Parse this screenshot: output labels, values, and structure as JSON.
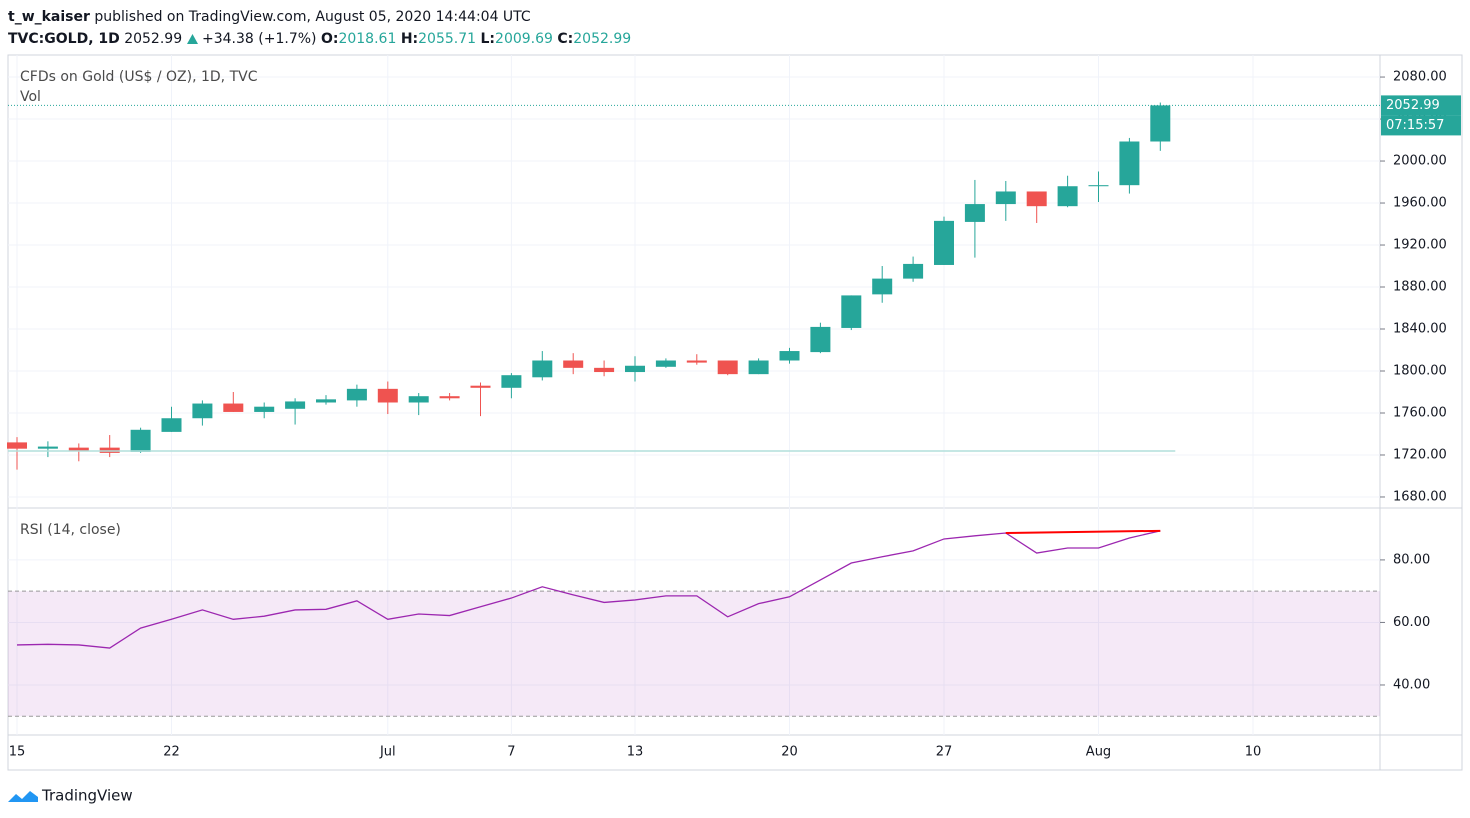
{
  "header": {
    "author": "t_w_kaiser",
    "published": "published on TradingView.com, August 05, 2020 14:44:04 UTC",
    "symbol": "TVC:GOLD, 1D",
    "change": "+34.38 (+1.7%)",
    "ohlc_labels": [
      "O:",
      "H:",
      "L:",
      "C:"
    ]
  },
  "footer": {
    "brand": "TradingView"
  },
  "chart_data": [
    {
      "type": "candlestick",
      "title": "CFDs on Gold (US$ / OZ), 1D, TVC",
      "volume_label": "Vol",
      "countdown": "07:15:57",
      "up_color": "#26a69a",
      "down_color": "#ef5350",
      "grid": true,
      "categories": [
        "15",
        null,
        null,
        null,
        null,
        "22",
        null,
        null,
        null,
        null,
        null,
        null,
        "Jul",
        null,
        null,
        null,
        "7",
        null,
        null,
        null,
        "13",
        null,
        null,
        null,
        null,
        "20",
        null,
        null,
        null,
        null,
        "27",
        null,
        null,
        null,
        null,
        "Aug",
        null,
        null,
        null,
        null,
        "10"
      ],
      "open": [
        1732,
        1726,
        1727,
        1727,
        1723,
        1742,
        1755,
        1769,
        1761,
        1764,
        1770,
        1772,
        1783,
        1770,
        1776,
        1786,
        1784,
        1794,
        1810,
        1803,
        1799,
        1804,
        1810,
        1810,
        1797,
        1810,
        1818,
        1841,
        1873,
        1888,
        1901,
        1942,
        1959,
        1971,
        1957,
        1976,
        1977,
        2018.61,
        null,
        null,
        null
      ],
      "high": [
        1737,
        1733,
        1731,
        1739,
        1746,
        1766,
        1772,
        1780,
        1770,
        1774,
        1777,
        1787,
        1790,
        1779,
        1779,
        1789,
        1798,
        1819,
        1817,
        1810,
        1814,
        1812,
        1816,
        1810,
        1812,
        1822,
        1846,
        1872,
        1900,
        1909,
        1947,
        1982,
        1981,
        1971,
        1986,
        1990,
        2022,
        2055.71,
        null,
        null,
        null
      ],
      "low": [
        1706,
        1718,
        1714,
        1718,
        1722,
        1742,
        1748,
        1761,
        1755,
        1749,
        1768,
        1766,
        1759,
        1758,
        1772,
        1757,
        1774,
        1791,
        1797,
        1795,
        1790,
        1803,
        1806,
        1796,
        1797,
        1807,
        1817,
        1839,
        1865,
        1885,
        1901,
        1908,
        1943,
        1941,
        1956,
        1961,
        1969,
        2009.69,
        null,
        null,
        null
      ],
      "close": [
        1726,
        1728,
        1724,
        1722,
        1744,
        1755,
        1769,
        1761,
        1766,
        1771,
        1773,
        1783,
        1770,
        1776,
        1774,
        1784,
        1796,
        1810,
        1803,
        1799,
        1805,
        1810,
        1808,
        1797,
        1810,
        1819,
        1842,
        1872,
        1888,
        1902,
        1943,
        1959,
        1971,
        1957,
        1976,
        1977,
        2018.61,
        2052.99,
        null,
        null,
        null
      ],
      "ylim": [
        1669.5,
        2101
      ],
      "yticks": [
        {
          "value": 1680,
          "label": "1680.00"
        },
        {
          "value": 1720,
          "label": "1720.00"
        },
        {
          "value": 1760,
          "label": "1760.00"
        },
        {
          "value": 1800,
          "label": "1800.00"
        },
        {
          "value": 1840,
          "label": "1840.00"
        },
        {
          "value": 1880,
          "label": "1880.00"
        },
        {
          "value": 1920,
          "label": "1920.00"
        },
        {
          "value": 1960,
          "label": "1960.00"
        },
        {
          "value": 2000,
          "label": "2000.00"
        },
        {
          "value": 2040,
          "label": "2040.00"
        },
        {
          "value": 2080,
          "label": "2080.00"
        }
      ]
    },
    {
      "type": "line",
      "title": "RSI (14, close)",
      "color": "#9c27b0",
      "band": [
        30,
        70
      ],
      "band_color": "#9c27b0",
      "grid": true,
      "values": [
        52.8,
        53,
        52.8,
        51.8,
        58.2,
        61,
        64,
        61,
        62,
        64,
        64.2,
        66.9,
        61,
        62.7,
        62.2,
        65,
        67.8,
        71.4,
        68.8,
        66.4,
        67.2,
        68.5,
        68.5,
        61.8,
        66,
        68.2,
        73.6,
        79,
        81,
        82.9,
        86.7,
        87.7,
        88.6,
        82.2,
        83.8,
        83.8,
        87,
        89.3
      ],
      "ylim": [
        24,
        96.6
      ],
      "yticks": [
        {
          "value": 40,
          "label": "40.00"
        },
        {
          "value": 60,
          "label": "60.00"
        },
        {
          "value": 80,
          "label": "80.00"
        }
      ]
    }
  ]
}
